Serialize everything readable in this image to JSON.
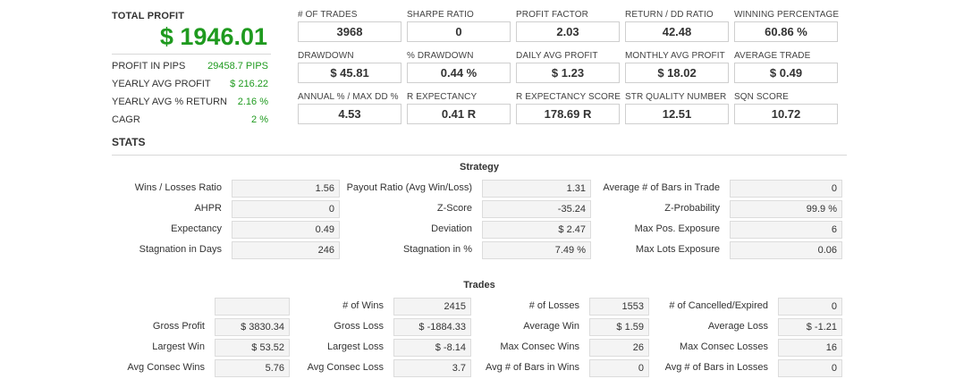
{
  "total_profit": {
    "label": "TOTAL PROFIT",
    "value": "$ 1946.01"
  },
  "summary_rows": [
    {
      "key": "PROFIT IN PIPS",
      "value": "29458.7 PIPS"
    },
    {
      "key": "YEARLY AVG PROFIT",
      "value": "$ 216.22"
    },
    {
      "key": "YEARLY AVG % RETURN",
      "value": "2.16 %"
    },
    {
      "key": "CAGR",
      "value": "2 %"
    }
  ],
  "metrics": [
    {
      "label": "# OF TRADES",
      "value": "3968"
    },
    {
      "label": "SHARPE RATIO",
      "value": "0"
    },
    {
      "label": "PROFIT FACTOR",
      "value": "2.03"
    },
    {
      "label": "RETURN / DD RATIO",
      "value": "42.48"
    },
    {
      "label": "WINNING PERCENTAGE",
      "value": "60.86 %"
    },
    {
      "label": "DRAWDOWN",
      "value": "$ 45.81"
    },
    {
      "label": "% DRAWDOWN",
      "value": "0.44 %"
    },
    {
      "label": "DAILY AVG PROFIT",
      "value": "$ 1.23"
    },
    {
      "label": "MONTHLY AVG PROFIT",
      "value": "$ 18.02"
    },
    {
      "label": "AVERAGE TRADE",
      "value": "$ 0.49"
    },
    {
      "label": "ANNUAL % / MAX DD %",
      "value": "4.53"
    },
    {
      "label": "R EXPECTANCY",
      "value": "0.41 R"
    },
    {
      "label": "R EXPECTANCY SCORE",
      "value": "178.69 R"
    },
    {
      "label": "STR QUALITY NUMBER",
      "value": "12.51"
    },
    {
      "label": "SQN SCORE",
      "value": "10.72"
    }
  ],
  "stats_title": "STATS",
  "strategy": {
    "title": "Strategy",
    "rows": [
      [
        {
          "label": "Wins / Losses Ratio",
          "value": "1.56"
        },
        {
          "label": "Payout Ratio (Avg Win/Loss)",
          "value": "1.31"
        },
        {
          "label": "Average # of Bars in Trade",
          "value": "0"
        }
      ],
      [
        {
          "label": "AHPR",
          "value": "0"
        },
        {
          "label": "Z-Score",
          "value": "-35.24"
        },
        {
          "label": "Z-Probability",
          "value": "99.9 %"
        }
      ],
      [
        {
          "label": "Expectancy",
          "value": "0.49"
        },
        {
          "label": "Deviation",
          "value": "$ 2.47"
        },
        {
          "label": "Max Pos. Exposure",
          "value": "6"
        }
      ],
      [
        {
          "label": "Stagnation in Days",
          "value": "246"
        },
        {
          "label": "Stagnation in %",
          "value": "7.49 %"
        },
        {
          "label": "Max Lots Exposure",
          "value": "0.06"
        }
      ]
    ]
  },
  "trades": {
    "title": "Trades",
    "rows": [
      [
        {
          "label": "",
          "value": ""
        },
        {
          "label": "# of Wins",
          "value": "2415"
        },
        {
          "label": "# of Losses",
          "value": "1553"
        },
        {
          "label": "# of Cancelled/Expired",
          "value": "0"
        }
      ],
      [
        {
          "label": "Gross Profit",
          "value": "$ 3830.34"
        },
        {
          "label": "Gross Loss",
          "value": "$ -1884.33"
        },
        {
          "label": "Average Win",
          "value": "$ 1.59"
        },
        {
          "label": "Average Loss",
          "value": "$ -1.21"
        }
      ],
      [
        {
          "label": "Largest Win",
          "value": "$ 53.52"
        },
        {
          "label": "Largest Loss",
          "value": "$ -8.14"
        },
        {
          "label": "Max Consec Wins",
          "value": "26"
        },
        {
          "label": "Max Consec Losses",
          "value": "16"
        }
      ],
      [
        {
          "label": "Avg Consec Wins",
          "value": "5.76"
        },
        {
          "label": "Avg Consec Loss",
          "value": "3.7"
        },
        {
          "label": "Avg # of Bars in Wins",
          "value": "0"
        },
        {
          "label": "Avg # of Bars in Losses",
          "value": "0"
        }
      ]
    ]
  }
}
